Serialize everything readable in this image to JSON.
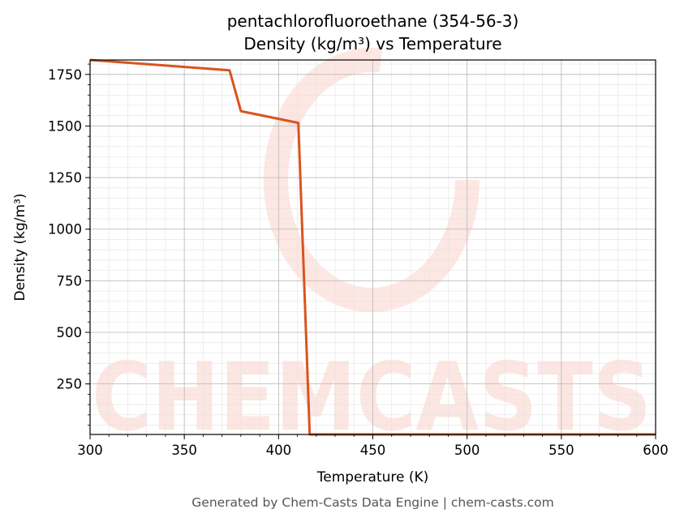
{
  "chart_data": {
    "type": "line",
    "title_line1": "pentachlorofluoroethane (354-56-3)",
    "title_line2": "Density (kg/m³) vs Temperature",
    "xlabel": "Temperature (K)",
    "ylabel": "Density (kg/m³)",
    "xlim": [
      300,
      600
    ],
    "ylim": [
      5,
      1820
    ],
    "x_ticks": [
      300,
      350,
      400,
      450,
      500,
      550,
      600
    ],
    "y_ticks": [
      250,
      500,
      750,
      1000,
      1250,
      1500,
      1750
    ],
    "grid": true,
    "series": [
      {
        "color": "#d9541e",
        "x": [
          300,
          374,
          380,
          410.5,
          416.5,
          600
        ],
        "y": [
          1820,
          1770,
          1572,
          1515,
          5,
          5
        ]
      }
    ]
  },
  "footer": "Generated by Chem-Casts Data Engine | chem-casts.com",
  "watermark": "CHEMCASTS"
}
